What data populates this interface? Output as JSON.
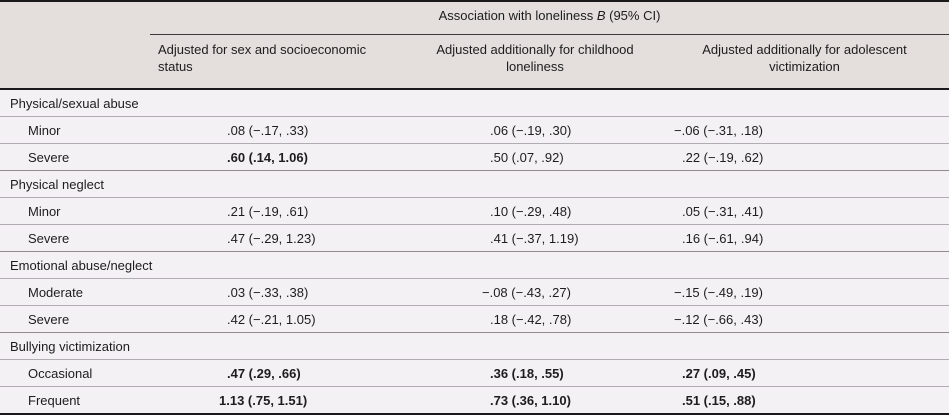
{
  "table": {
    "span_header": {
      "prefix": "Association with loneliness",
      "stat": "B",
      "suffix": "(95% CI)"
    },
    "columns": [
      "Adjusted for sex and socioeconomic status",
      "Adjusted additionally for childhood loneliness",
      "Adjusted additionally for adolescent victimization"
    ],
    "colors": {
      "header_bg": "#e4dedc",
      "body_bg": "#f3f1f4",
      "rule_heavy": "#1a1a1a",
      "rule_light": "#b2adb2",
      "rule_section": "#8f8b8f",
      "rule_span": "#3a3a3a",
      "text": "#1d1d1d"
    },
    "rows": [
      {
        "type": "section",
        "label": "Physical/sexual abuse"
      },
      {
        "type": "data",
        "label": "Minor",
        "cells": [
          ".08 (−.17, .33)",
          ".06 (−.19, .30)",
          "−.06 (−.31, .18)"
        ],
        "bold": [
          false,
          false,
          false
        ]
      },
      {
        "type": "data",
        "label": "Severe",
        "cells": [
          ".60 (.14, 1.06)",
          ".50 (.07, .92)",
          ".22 (−.19, .62)"
        ],
        "bold": [
          true,
          false,
          false
        ]
      },
      {
        "type": "section",
        "label": "Physical neglect"
      },
      {
        "type": "data",
        "label": "Minor",
        "cells": [
          ".21 (−.19, .61)",
          ".10 (−.29, .48)",
          ".05 (−.31, .41)"
        ],
        "bold": [
          false,
          false,
          false
        ]
      },
      {
        "type": "data",
        "label": "Severe",
        "cells": [
          ".47 (−.29, 1.23)",
          ".41 (−.37, 1.19)",
          ".16 (−.61, .94)"
        ],
        "bold": [
          false,
          false,
          false
        ]
      },
      {
        "type": "section",
        "label": "Emotional abuse/neglect"
      },
      {
        "type": "data",
        "label": "Moderate",
        "cells": [
          ".03 (−.33, .38)",
          "−.08 (−.43, .27)",
          "−.15 (−.49, .19)"
        ],
        "bold": [
          false,
          false,
          false
        ]
      },
      {
        "type": "data",
        "label": "Severe",
        "cells": [
          ".42 (−.21, 1.05)",
          ".18 (−.42, .78)",
          "−.12 (−.66, .43)"
        ],
        "bold": [
          false,
          false,
          false
        ]
      },
      {
        "type": "section",
        "label": "Bullying victimization"
      },
      {
        "type": "data",
        "label": "Occasional",
        "cells": [
          ".47 (.29, .66)",
          ".36 (.18, .55)",
          ".27 (.09, .45)"
        ],
        "bold": [
          true,
          true,
          true
        ]
      },
      {
        "type": "data",
        "label": "Frequent",
        "cells": [
          "1.13 (.75, 1.51)",
          ".73 (.36, 1.10)",
          ".51 (.15, .88)"
        ],
        "bold": [
          true,
          true,
          true
        ]
      }
    ]
  }
}
